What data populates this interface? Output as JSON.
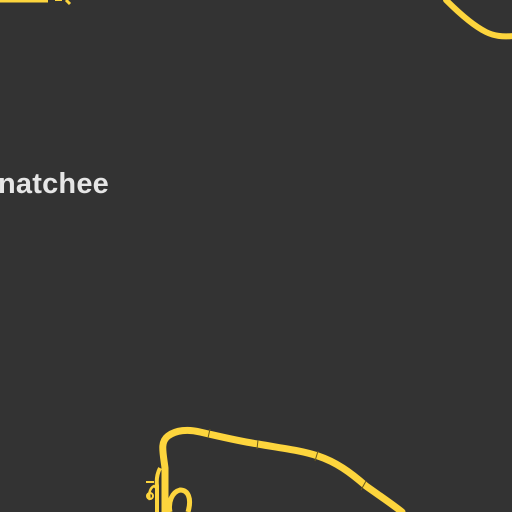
{
  "map": {
    "background_color": "#333333",
    "road_color": "#fdd53d",
    "road_casing_color": "#3a3520",
    "place_label": {
      "text": "natchee",
      "color": "#e6e6e6"
    }
  }
}
